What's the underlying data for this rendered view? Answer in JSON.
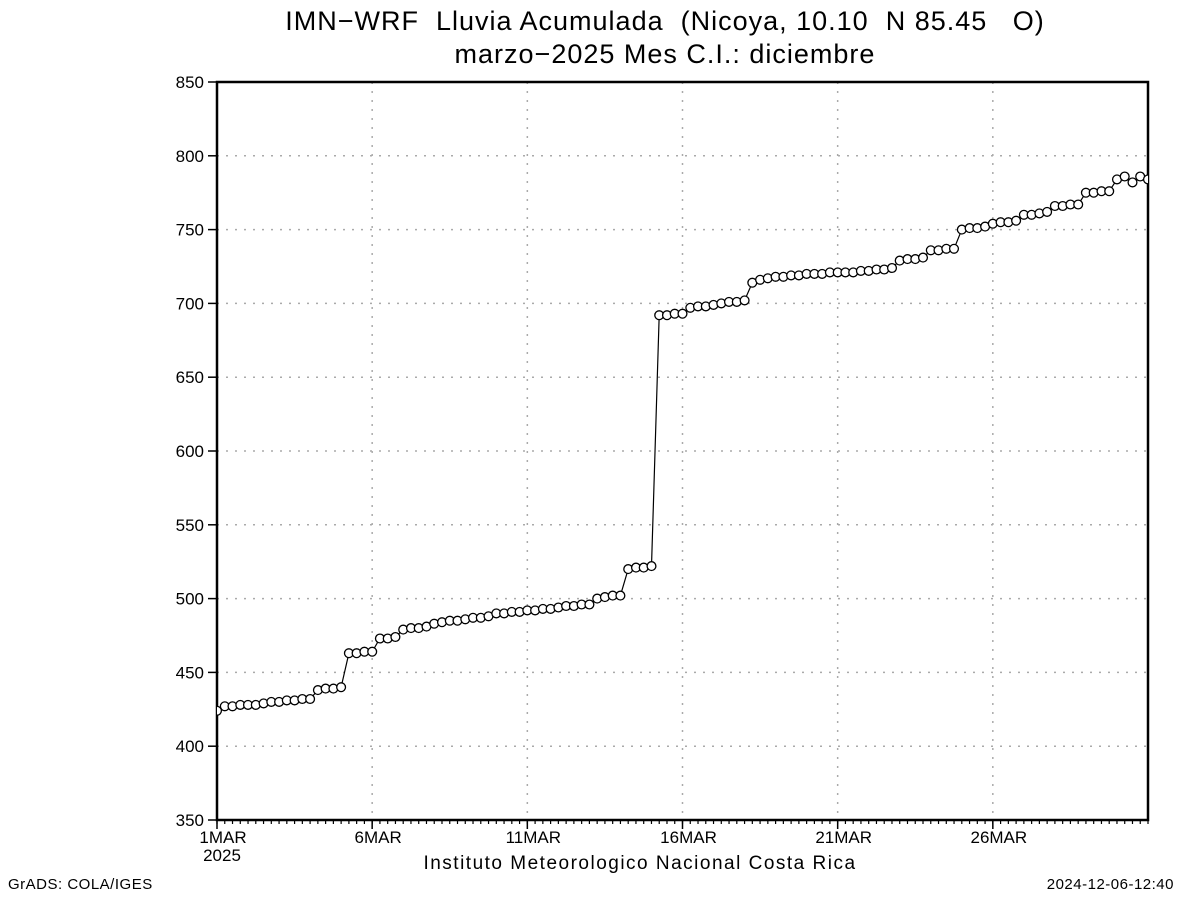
{
  "title": {
    "line1": "IMN−WRF  Lluvia Acumulada  (Nicoya, 10.10  N 85.45   O)",
    "line2": "marzo−2025 Mes C.I.: diciembre"
  },
  "footer": {
    "caption": "Instituto Meteorologico Nacional Costa Rica",
    "credit": "GrADS: COLA/IGES",
    "timestamp": "2024-12-06-12:40"
  },
  "chart_data": {
    "type": "line",
    "title": "IMN-WRF Lluvia Acumulada (Nicoya, 10.10 N 85.45 O)",
    "subtitle": "marzo-2025 Mes C.I.: diciembre",
    "xlabel": "",
    "ylabel": "",
    "background": "#ffffff",
    "line_color": "#000000",
    "grid_color": "#aaaaaa",
    "marker": "open-circle",
    "y_axis": {
      "min": 350,
      "max": 850,
      "tick_values": [
        350,
        400,
        450,
        500,
        550,
        600,
        650,
        700,
        750,
        800,
        850
      ],
      "tick_labels": [
        "350",
        "400",
        "450",
        "500",
        "550",
        "600",
        "650",
        "700",
        "750",
        "800",
        "850"
      ],
      "gridline_values": [
        400,
        450,
        500,
        550,
        600,
        650,
        700,
        750,
        800
      ]
    },
    "x_axis": {
      "range_days": [
        1,
        31
      ],
      "tick_days": [
        1,
        6,
        11,
        16,
        21,
        26
      ],
      "tick_labels": [
        "1MAR",
        "6MAR",
        "11MAR",
        "16MAR",
        "21MAR",
        "26MAR"
      ],
      "year_label": "2025",
      "gridline_days": [
        6,
        11,
        16,
        21,
        26
      ],
      "minor_tick_step_days": 0.25
    },
    "series": [
      {
        "name": "lluvia-acumulada-mm",
        "start_day": 1,
        "step_days": 0.25,
        "values": [
          424,
          427,
          427,
          428,
          428,
          428,
          429,
          430,
          430,
          431,
          431,
          432,
          432,
          438,
          439,
          439,
          440,
          463,
          463,
          464,
          464,
          473,
          473,
          474,
          479,
          480,
          480,
          481,
          483,
          484,
          485,
          485,
          486,
          487,
          487,
          488,
          490,
          490,
          491,
          491,
          492,
          492,
          493,
          493,
          494,
          495,
          495,
          496,
          496,
          500,
          501,
          502,
          502,
          520,
          521,
          521,
          522,
          692,
          692,
          693,
          693,
          697,
          698,
          698,
          699,
          700,
          701,
          701,
          702,
          714,
          716,
          717,
          718,
          718,
          719,
          719,
          720,
          720,
          720,
          721,
          721,
          721,
          721,
          722,
          722,
          723,
          723,
          724,
          729,
          730,
          730,
          731,
          736,
          736,
          737,
          737,
          750,
          751,
          751,
          752,
          754,
          755,
          755,
          756,
          760,
          760,
          761,
          762,
          766,
          766,
          767,
          767,
          775,
          775,
          776,
          776,
          784,
          786,
          782,
          786,
          784
        ]
      }
    ]
  }
}
